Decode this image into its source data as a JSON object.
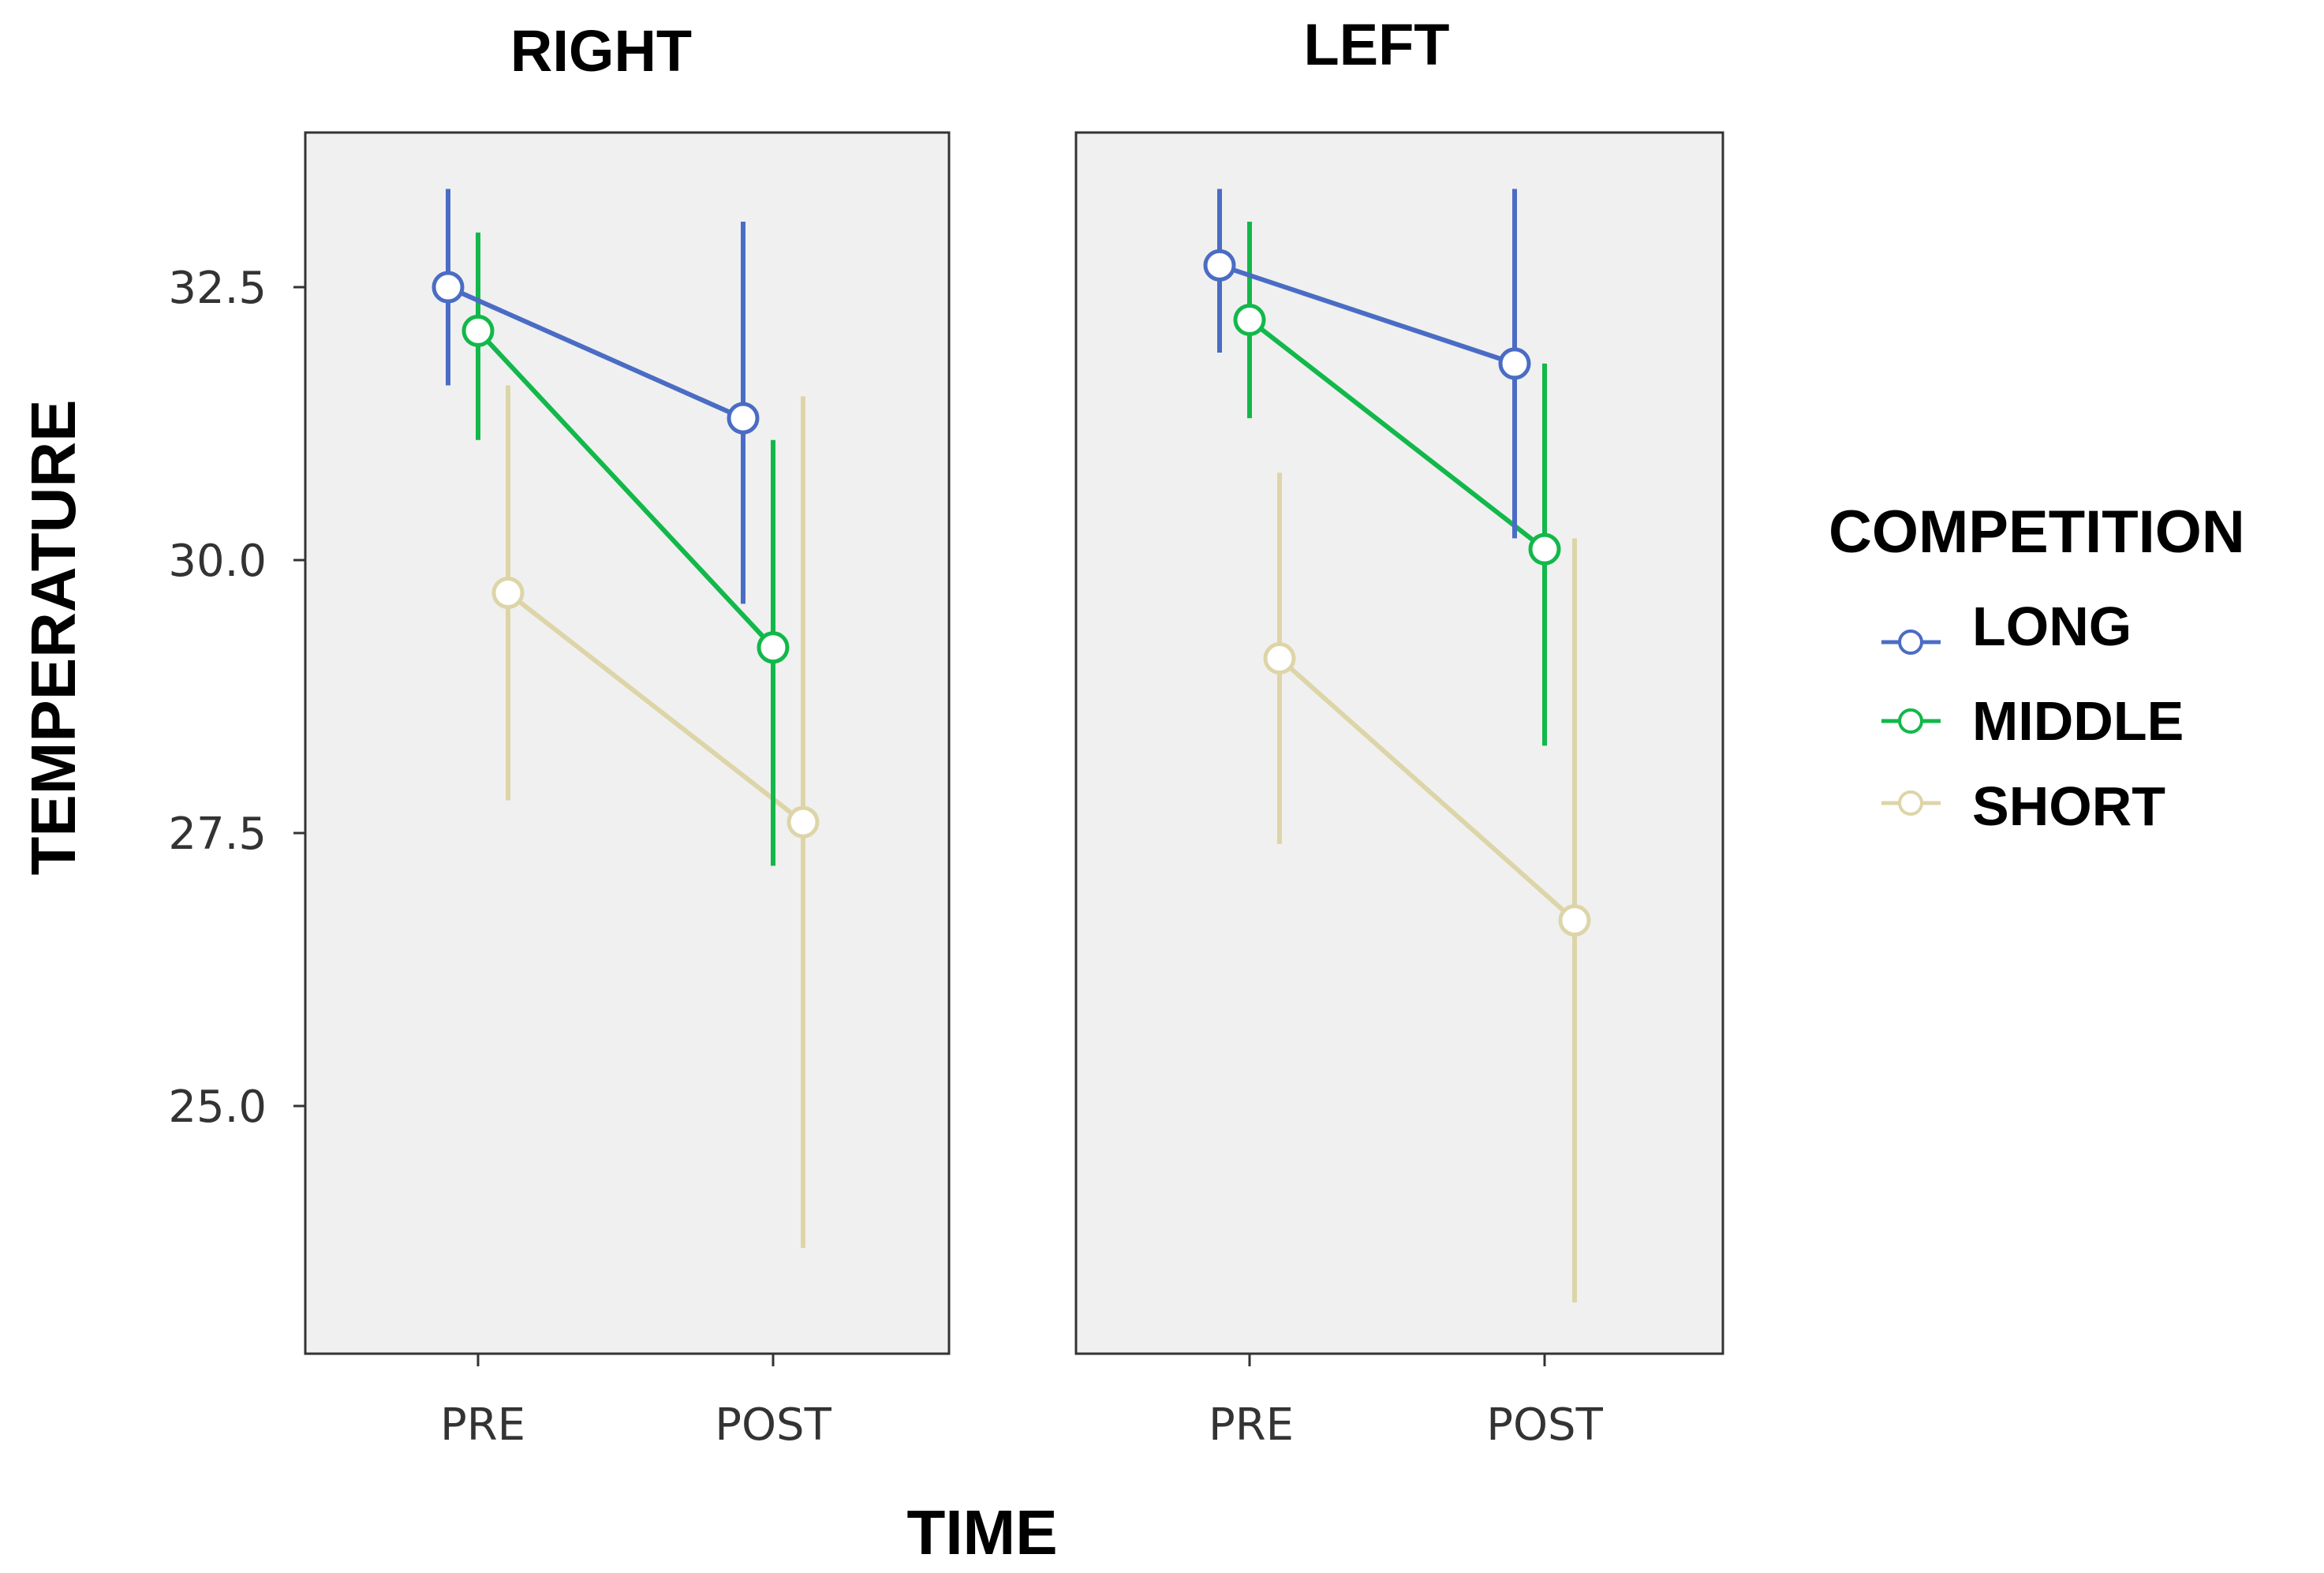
{
  "chart_data": {
    "type": "line",
    "xlabel": "TIME",
    "ylabel": "TEMPERATURE",
    "categories": [
      "PRE",
      "POST"
    ],
    "ylim": [
      23.2,
      33.8
    ],
    "yticks": [
      25.0,
      27.5,
      30.0,
      32.5
    ],
    "ytick_labels": [
      "25.0",
      "27.5",
      "30.0",
      "32.5"
    ],
    "grid": false,
    "legend": {
      "title": "COMPETITION",
      "placement": "right",
      "entries": [
        {
          "name": "LONG",
          "color": "#4a6cc4"
        },
        {
          "name": "MIDDLE",
          "color": "#12b84a"
        },
        {
          "name": "SHORT",
          "color": "#ddd5a8"
        }
      ]
    },
    "panels": [
      {
        "title": "RIGHT",
        "series": [
          {
            "name": "LONG",
            "color": "#4a6cc4",
            "values": [
              32.5,
              31.3
            ],
            "ci_low": [
              31.6,
              29.6
            ],
            "ci_high": [
              33.4,
              33.1
            ]
          },
          {
            "name": "MIDDLE",
            "color": "#12b84a",
            "values": [
              32.1,
              29.2
            ],
            "ci_low": [
              31.1,
              27.2
            ],
            "ci_high": [
              33.0,
              31.1
            ]
          },
          {
            "name": "SHORT",
            "color": "#ddd5a8",
            "values": [
              29.7,
              27.6
            ],
            "ci_low": [
              27.8,
              23.7
            ],
            "ci_high": [
              31.6,
              31.5
            ]
          }
        ]
      },
      {
        "title": "LEFT",
        "series": [
          {
            "name": "LONG",
            "color": "#4a6cc4",
            "values": [
              32.7,
              31.8
            ],
            "ci_low": [
              31.9,
              30.2
            ],
            "ci_high": [
              33.4,
              33.4
            ]
          },
          {
            "name": "MIDDLE",
            "color": "#12b84a",
            "values": [
              32.2,
              30.1
            ],
            "ci_low": [
              31.3,
              28.3
            ],
            "ci_high": [
              33.1,
              31.8
            ]
          },
          {
            "name": "SHORT",
            "color": "#ddd5a8",
            "values": [
              29.1,
              26.7
            ],
            "ci_low": [
              27.4,
              23.2
            ],
            "ci_high": [
              30.8,
              30.2
            ]
          }
        ]
      }
    ]
  }
}
